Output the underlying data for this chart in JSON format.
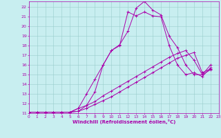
{
  "bg_color": "#c8eef0",
  "line_color": "#aa00aa",
  "grid_color": "#99cccc",
  "xlabel": "Windchill (Refroidissement éolien,°C)",
  "xlim": [
    0,
    23
  ],
  "ylim": [
    11,
    22.6
  ],
  "lines": [
    {
      "x": [
        0,
        1,
        2,
        3,
        4,
        5,
        6,
        7,
        8,
        9,
        10,
        11,
        12,
        13,
        14,
        15,
        16,
        17,
        18,
        19,
        20,
        21,
        22
      ],
      "y": [
        11.1,
        11.1,
        11.1,
        11.1,
        11.1,
        11.1,
        11.5,
        13.0,
        14.5,
        16.0,
        17.5,
        18.0,
        21.5,
        21.1,
        21.5,
        21.1,
        21.0,
        18.0,
        16.0,
        15.0,
        15.2,
        14.8,
        15.7
      ]
    },
    {
      "x": [
        0,
        1,
        2,
        3,
        4,
        5,
        6,
        7,
        8,
        9,
        10,
        11,
        12,
        13,
        14,
        15,
        16,
        17,
        18,
        19,
        20,
        21,
        22
      ],
      "y": [
        11.1,
        11.1,
        11.1,
        11.1,
        11.1,
        11.1,
        11.5,
        11.8,
        13.2,
        16.0,
        17.5,
        18.1,
        19.5,
        21.9,
        22.6,
        21.7,
        21.2,
        19.0,
        17.8,
        16.0,
        15.0,
        15.0,
        15.5
      ]
    },
    {
      "x": [
        0,
        1,
        2,
        3,
        4,
        5,
        6,
        7,
        8,
        9,
        10,
        11,
        12,
        13,
        14,
        15,
        16,
        17,
        18,
        19,
        20,
        21,
        22
      ],
      "y": [
        11.1,
        11.1,
        11.1,
        11.1,
        11.1,
        11.1,
        11.2,
        11.5,
        11.9,
        12.3,
        12.7,
        13.2,
        13.7,
        14.2,
        14.7,
        15.2,
        15.7,
        16.2,
        16.7,
        17.0,
        17.3,
        15.2,
        15.6
      ]
    },
    {
      "x": [
        0,
        1,
        2,
        3,
        4,
        5,
        6,
        7,
        8,
        9,
        10,
        11,
        12,
        13,
        14,
        15,
        16,
        17,
        18,
        19,
        20,
        21,
        22
      ],
      "y": [
        11.1,
        11.1,
        11.1,
        11.1,
        11.1,
        11.1,
        11.2,
        11.8,
        12.2,
        12.8,
        13.3,
        13.8,
        14.3,
        14.8,
        15.3,
        15.8,
        16.3,
        16.8,
        17.2,
        17.5,
        16.5,
        15.0,
        16.0
      ]
    }
  ]
}
